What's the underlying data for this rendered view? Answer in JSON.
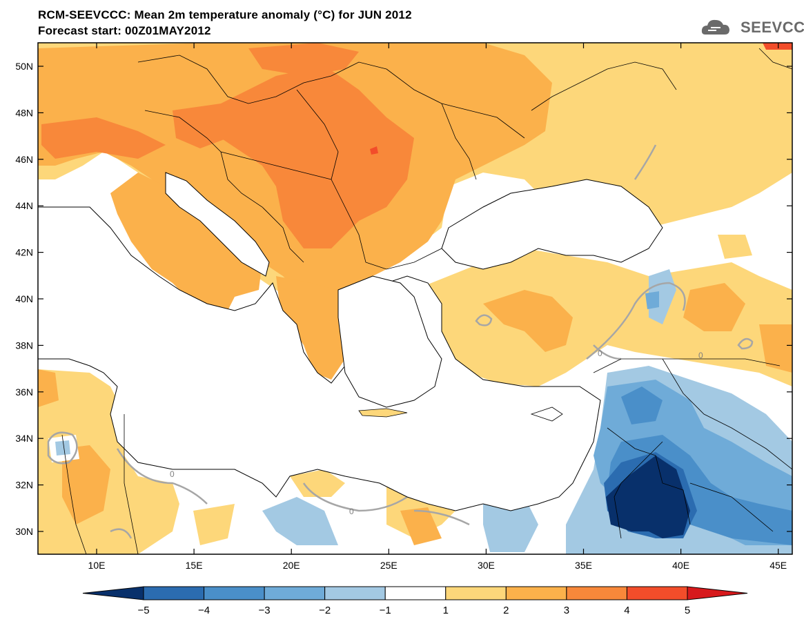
{
  "title_line1": "RCM-SEEVCCC: Mean 2m temperature anomaly (°C) for JUN 2012",
  "title_line2": "Forecast start: 00Z01MAY2012",
  "logo_text": "SEEVCCC",
  "lat_labels": [
    "50N",
    "48N",
    "46N",
    "44N",
    "42N",
    "40N",
    "38N",
    "36N",
    "34N",
    "32N",
    "30N"
  ],
  "lon_labels": [
    "10E",
    "15E",
    "20E",
    "25E",
    "30E",
    "35E",
    "40E",
    "45E"
  ],
  "contour_label": "0",
  "colorbar": {
    "labels": [
      "−5",
      "−4",
      "−3",
      "−2",
      "−1",
      "1",
      "2",
      "3",
      "4",
      "5"
    ],
    "colors": [
      "#08306b",
      "#2b6cb0",
      "#4a8fc9",
      "#6fabd8",
      "#a3c9e3",
      "#ffffff",
      "#fdd77a",
      "#fbb14b",
      "#f8883a",
      "#f24d2a",
      "#d7191c"
    ]
  },
  "colors": {
    "sea": "#ffffff",
    "anom_1_2": "#fdd77a",
    "anom_2_3": "#fbb14b",
    "anom_3_4": "#f8883a",
    "anom_4_5": "#f24d2a",
    "anom_m1_m2": "#a3c9e3",
    "anom_m2_m3": "#6fabd8",
    "anom_m3_m4": "#4a8fc9",
    "anom_m4_m5": "#2b6cb0",
    "anom_below_m5": "#08306b"
  }
}
